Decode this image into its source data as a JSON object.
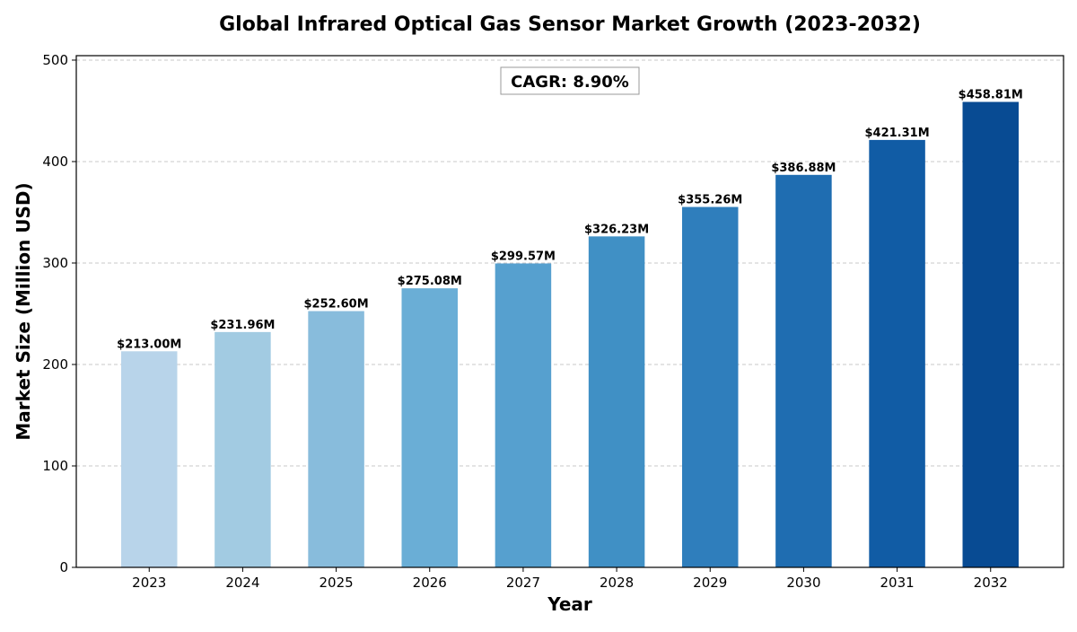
{
  "chart_data": {
    "type": "bar",
    "title": "Global Infrared Optical Gas Sensor Market Growth (2023-2032)",
    "xlabel": "Year",
    "ylabel": "Market Size (Million USD)",
    "categories": [
      "2023",
      "2024",
      "2025",
      "2026",
      "2027",
      "2028",
      "2029",
      "2030",
      "2031",
      "2032"
    ],
    "values": [
      213.0,
      231.96,
      252.6,
      275.08,
      299.57,
      326.23,
      355.26,
      386.88,
      421.31,
      458.81
    ],
    "data_labels": [
      "$213.00M",
      "$231.96M",
      "$252.60M",
      "$275.08M",
      "$299.57M",
      "$326.23M",
      "$355.26M",
      "$386.88M",
      "$421.31M",
      "$458.81M"
    ],
    "colors": [
      "#b8d4ea",
      "#a2cbe2",
      "#88bcdc",
      "#6aaed6",
      "#56a0cf",
      "#4090c5",
      "#2f7ebc",
      "#1f6db1",
      "#115ca5",
      "#084b93"
    ],
    "ylim": [
      0,
      504.4
    ],
    "yticks": [
      0,
      100,
      200,
      300,
      400,
      500
    ],
    "ytick_labels": [
      "0",
      "100",
      "200",
      "300",
      "400",
      "500"
    ],
    "grid": "y-dashed",
    "annotation": "CAGR: 8.90%"
  }
}
